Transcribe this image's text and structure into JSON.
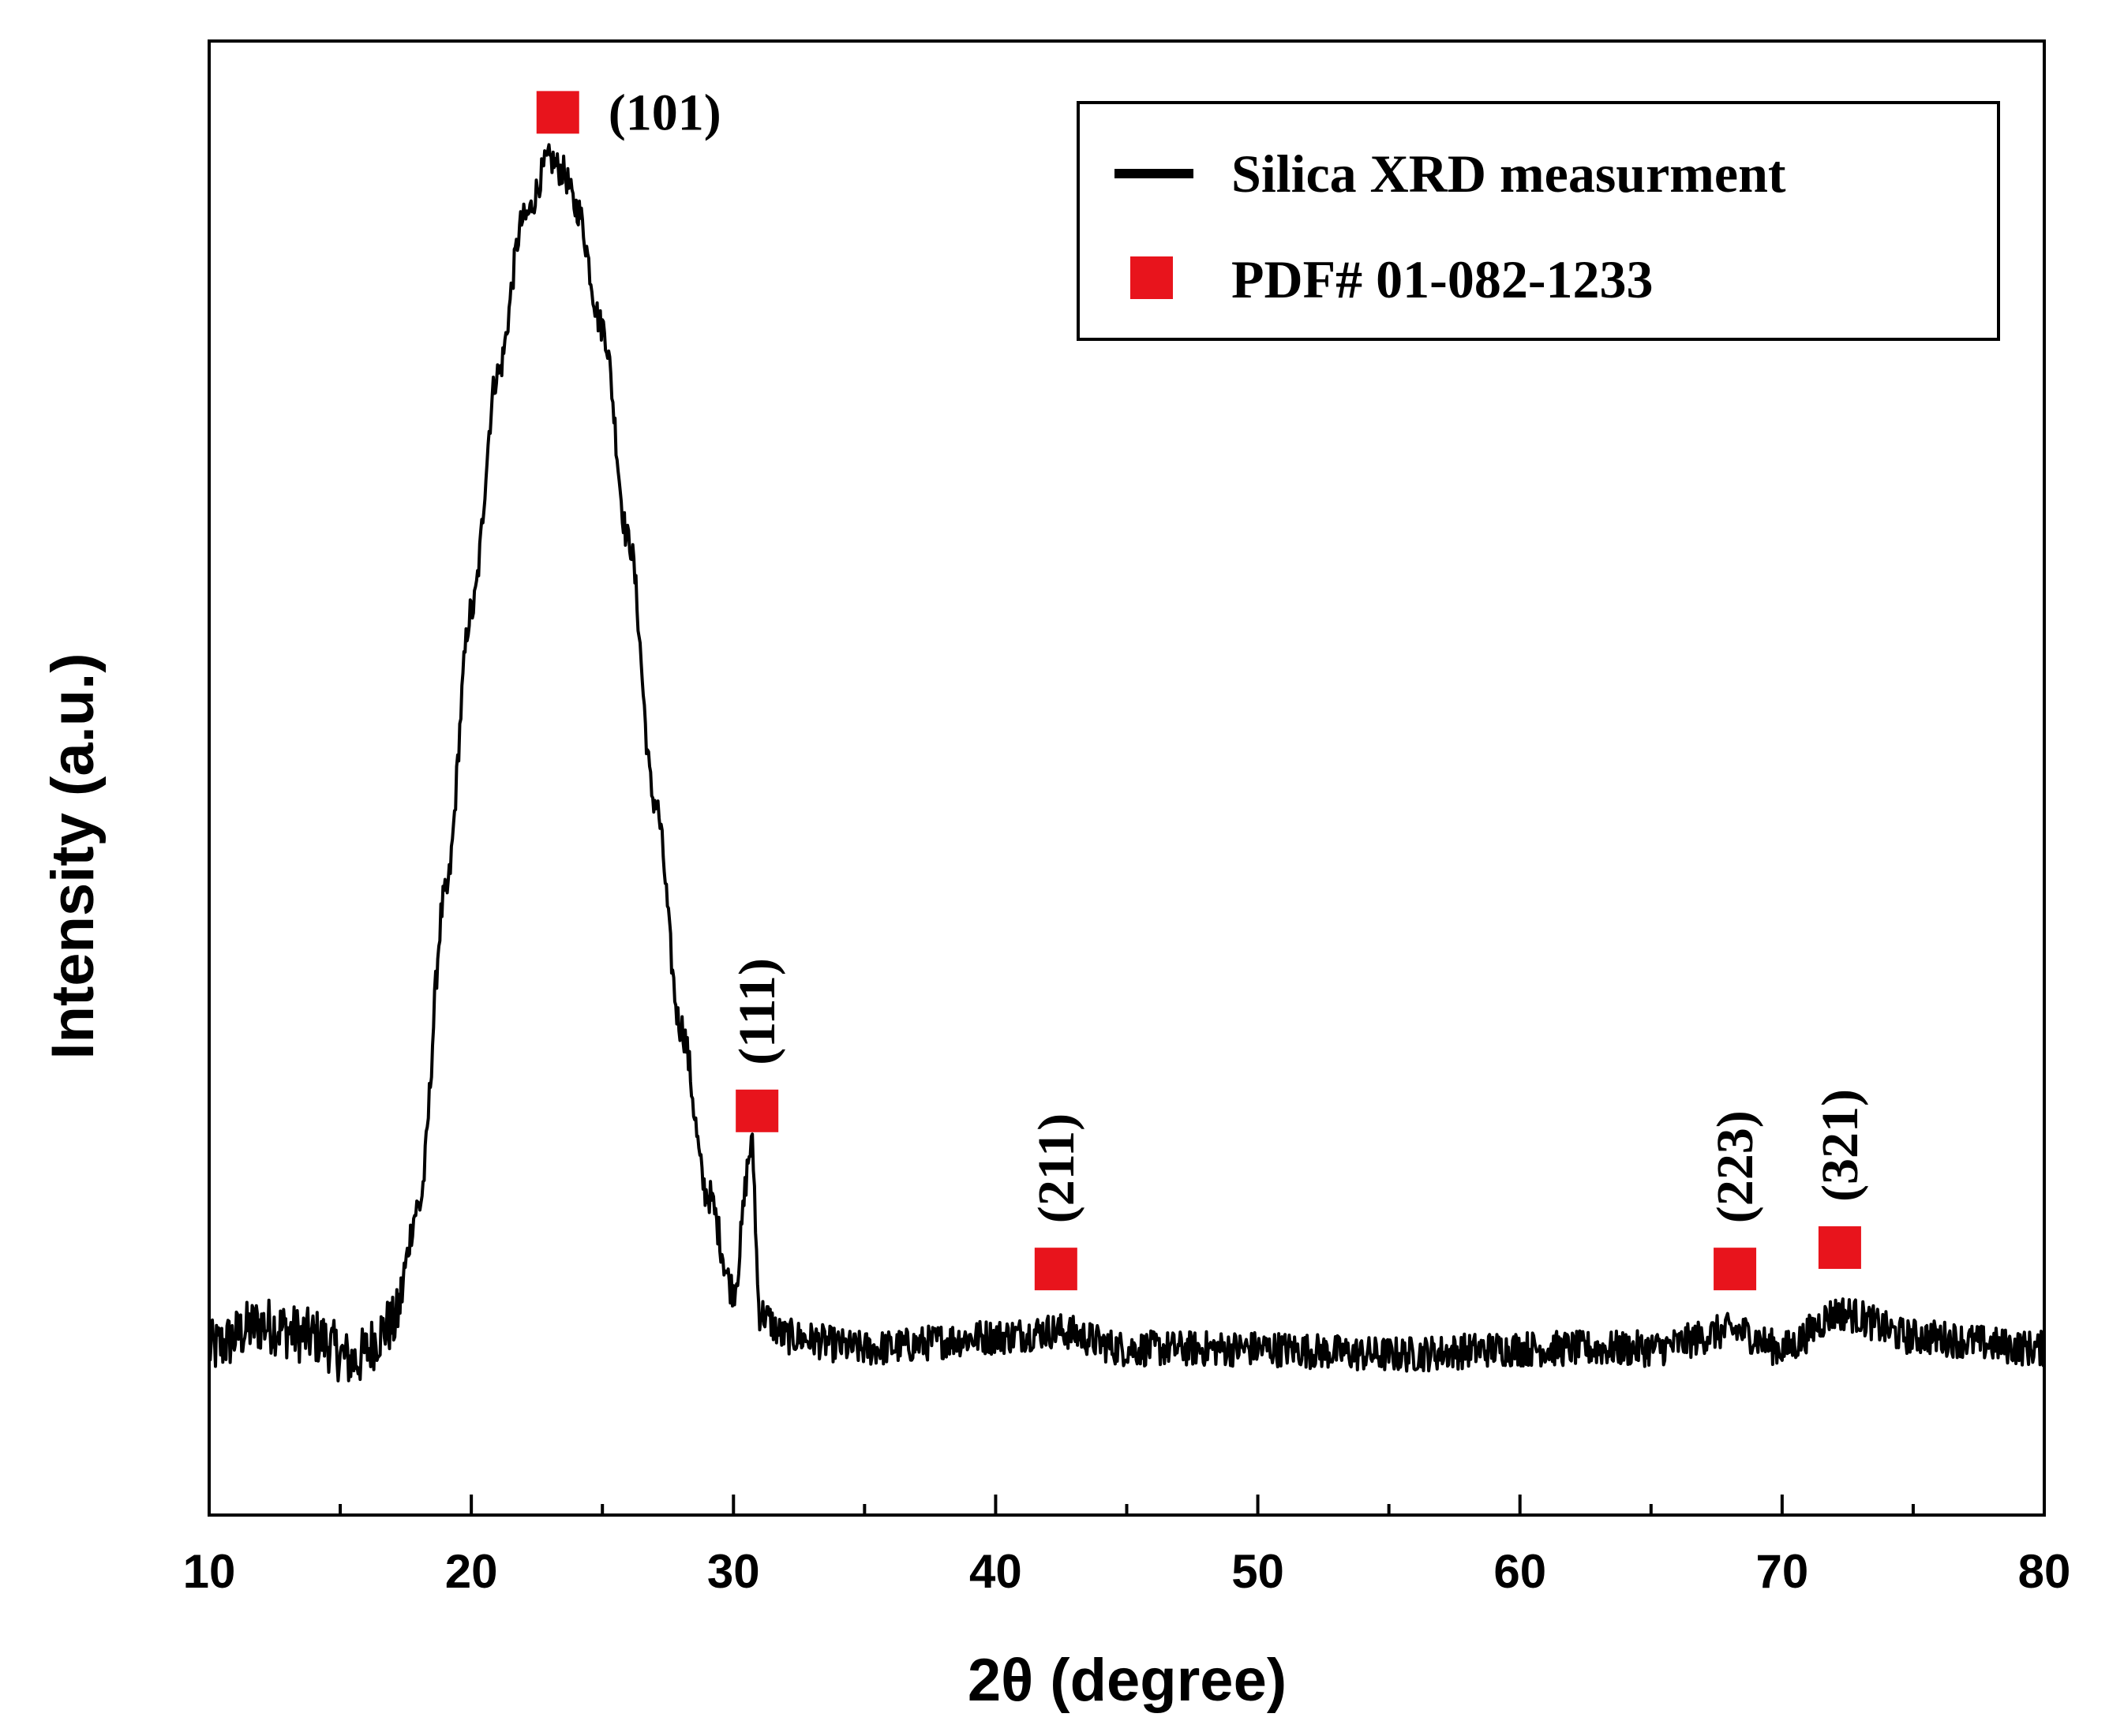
{
  "chart_data": {
    "type": "line",
    "title": "",
    "xlabel": "2θ (degree)",
    "ylabel": "Intensity (a.u.)",
    "xlim": [
      10,
      80
    ],
    "ylim": [
      -0.14,
      1.1
    ],
    "x_ticks": [
      10,
      20,
      30,
      40,
      50,
      60,
      70,
      80
    ],
    "x_tick_labels": [
      "10",
      "20",
      "30",
      "40",
      "50",
      "60",
      "70",
      "80"
    ],
    "x_minor_ticks": [
      15,
      25,
      35,
      45,
      55,
      65,
      75
    ],
    "y_ticks_shown": false,
    "grid": false,
    "legend": {
      "position": "top-right",
      "entries": [
        {
          "label": "Silica XRD measurment",
          "marker": "line",
          "color": "#000000"
        },
        {
          "label": "PDF# 01-082-1233",
          "marker": "square",
          "color": "#e8141c"
        }
      ]
    },
    "series": [
      {
        "name": "Silica XRD measurment",
        "color": "#000000",
        "baseline": 0.0,
        "noise_amplitude": 0.015,
        "description_points": [
          [
            10,
            0.0
          ],
          [
            12,
            0.02
          ],
          [
            14,
            0.01
          ],
          [
            15.5,
            -0.01
          ],
          [
            17,
            0.02
          ],
          [
            18,
            0.12
          ],
          [
            19,
            0.38
          ],
          [
            20,
            0.62
          ],
          [
            21,
            0.82
          ],
          [
            22,
            0.95
          ],
          [
            23,
            1.0
          ],
          [
            23.5,
            0.99
          ],
          [
            24,
            0.96
          ],
          [
            25,
            0.86
          ],
          [
            26,
            0.68
          ],
          [
            27,
            0.46
          ],
          [
            28,
            0.27
          ],
          [
            29,
            0.13
          ],
          [
            30,
            0.05
          ],
          [
            30.7,
            0.17
          ],
          [
            31,
            0.03
          ],
          [
            32,
            0.01
          ],
          [
            35,
            0.0
          ],
          [
            40,
            0.01
          ],
          [
            42.3,
            0.015
          ],
          [
            45,
            0.0
          ],
          [
            50,
            0.0
          ],
          [
            55,
            -0.005
          ],
          [
            60,
            0.0
          ],
          [
            65,
            0.0
          ],
          [
            68.2,
            0.015
          ],
          [
            70,
            0.0
          ],
          [
            72.2,
            0.03
          ],
          [
            75,
            0.01
          ],
          [
            80,
            0.0
          ]
        ]
      },
      {
        "name": "PDF# 01-082-1233",
        "color": "#e8141c",
        "type": "scatter",
        "points": [
          {
            "x": 23.3,
            "y": 1.04,
            "label": "(101)"
          },
          {
            "x": 30.9,
            "y": 0.2,
            "label": "(111)"
          },
          {
            "x": 42.3,
            "y": 0.067,
            "label": "(211)"
          },
          {
            "x": 68.2,
            "y": 0.067,
            "label": "(223)"
          },
          {
            "x": 72.2,
            "y": 0.085,
            "label": "(321)"
          }
        ]
      }
    ]
  }
}
